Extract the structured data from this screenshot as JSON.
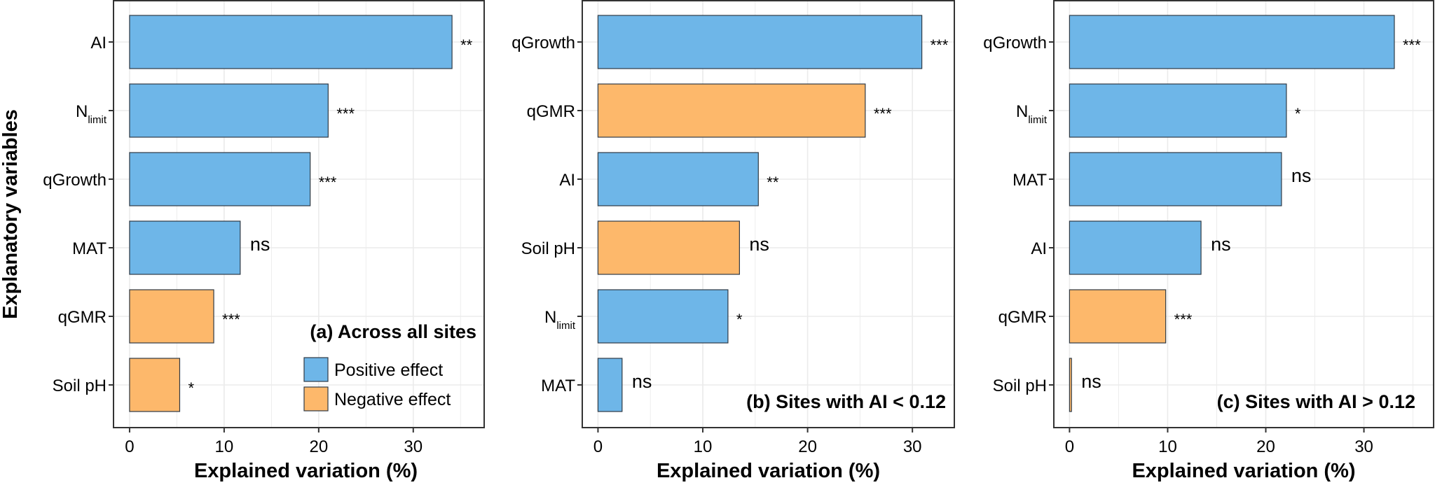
{
  "figure": {
    "y_axis_title": "Explanatory variables",
    "x_axis_title": "Explained variation (%)"
  },
  "legend": {
    "placement": "bottom-right of panel (a)",
    "entries": [
      {
        "label": "Positive effect",
        "effect": "positive",
        "color": "#6EB6E8"
      },
      {
        "label": "Negative effect",
        "effect": "negative",
        "color": "#FDB86B"
      }
    ]
  },
  "colors": {
    "positive": "#6EB6E8",
    "negative": "#FDB86B",
    "bar_stroke": "#2f3a45",
    "grid": "#ebebeb",
    "frame": "#333333"
  },
  "chart_data": [
    {
      "type": "bar",
      "orientation": "horizontal",
      "title": "(a) Across all sites",
      "xlabel": "Explained variation (%)",
      "ylabel": "Explanatory variables",
      "xlim": [
        -1.7,
        37.5
      ],
      "xticks": [
        0,
        10,
        20,
        30
      ],
      "grid": true,
      "categories": [
        "AI",
        "N_limit",
        "qGrowth",
        "MAT",
        "qGMR",
        "Soil pH"
      ],
      "category_display": [
        {
          "main": "AI",
          "sub": ""
        },
        {
          "main": "N",
          "sub": "limit"
        },
        {
          "main": "qGrowth",
          "sub": ""
        },
        {
          "main": "MAT",
          "sub": ""
        },
        {
          "main": "qGMR",
          "sub": ""
        },
        {
          "main": "Soil pH",
          "sub": ""
        }
      ],
      "values": [
        34.1,
        21.0,
        19.1,
        11.7,
        8.9,
        5.3
      ],
      "effects": [
        "positive",
        "positive",
        "positive",
        "positive",
        "negative",
        "negative"
      ],
      "significance": [
        "**",
        "***",
        "***",
        "ns",
        "***",
        "*"
      ]
    },
    {
      "type": "bar",
      "orientation": "horizontal",
      "title": "(b) Sites with AI < 0.12",
      "xlabel": "Explained variation (%)",
      "xlim": [
        -1.5,
        34.0
      ],
      "xticks": [
        0,
        10,
        20,
        30
      ],
      "grid": true,
      "categories": [
        "qGrowth",
        "qGMR",
        "AI",
        "Soil pH",
        "N_limit",
        "MAT"
      ],
      "category_display": [
        {
          "main": "qGrowth",
          "sub": ""
        },
        {
          "main": "qGMR",
          "sub": ""
        },
        {
          "main": "AI",
          "sub": ""
        },
        {
          "main": "Soil pH",
          "sub": ""
        },
        {
          "main": "N",
          "sub": "limit"
        },
        {
          "main": "MAT",
          "sub": ""
        }
      ],
      "values": [
        30.9,
        25.5,
        15.3,
        13.5,
        12.4,
        2.3
      ],
      "effects": [
        "positive",
        "negative",
        "positive",
        "negative",
        "positive",
        "positive"
      ],
      "significance": [
        "***",
        "***",
        "**",
        "ns",
        "*",
        "ns"
      ]
    },
    {
      "type": "bar",
      "orientation": "horizontal",
      "title": "(c) Sites with AI > 0.12",
      "xlabel": "Explained variation (%)",
      "xlim": [
        -1.6,
        37.1
      ],
      "xticks": [
        0,
        10,
        20,
        30
      ],
      "grid": true,
      "categories": [
        "qGrowth",
        "N_limit",
        "MAT",
        "AI",
        "qGMR",
        "Soil pH"
      ],
      "category_display": [
        {
          "main": "qGrowth",
          "sub": ""
        },
        {
          "main": "N",
          "sub": "limit"
        },
        {
          "main": "MAT",
          "sub": ""
        },
        {
          "main": "AI",
          "sub": ""
        },
        {
          "main": "qGMR",
          "sub": ""
        },
        {
          "main": "Soil pH",
          "sub": ""
        }
      ],
      "values": [
        33.1,
        22.1,
        21.6,
        13.4,
        9.8,
        0.2
      ],
      "effects": [
        "positive",
        "positive",
        "positive",
        "positive",
        "negative",
        "negative"
      ],
      "significance": [
        "***",
        "*",
        "ns",
        "ns",
        "***",
        "ns"
      ]
    }
  ]
}
